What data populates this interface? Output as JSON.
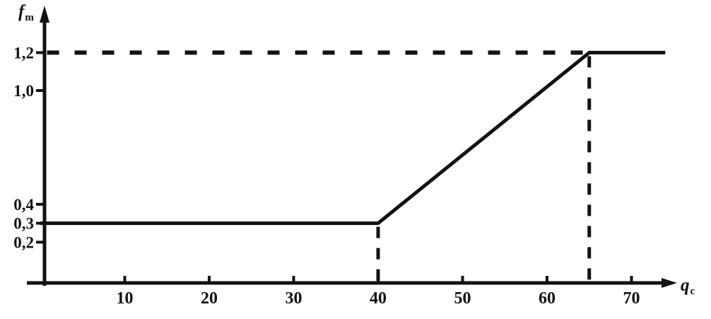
{
  "chart_data": {
    "type": "line",
    "title": "",
    "ylabel_main": "f",
    "ylabel_sub": "m",
    "xlabel_main": "q",
    "xlabel_sub": "c",
    "xlim": [
      0,
      77
    ],
    "ylim": [
      0,
      1.45
    ],
    "grid": false,
    "legend": false,
    "decimal_separator": ",",
    "x_ticks": [
      {
        "value": 10,
        "label": "10"
      },
      {
        "value": 20,
        "label": "20"
      },
      {
        "value": 30,
        "label": "30"
      },
      {
        "value": 40,
        "label": "40"
      },
      {
        "value": 50,
        "label": "50"
      },
      {
        "value": 60,
        "label": "60"
      },
      {
        "value": 70,
        "label": "70"
      }
    ],
    "y_ticks": [
      {
        "value": 0.2,
        "label": "0,2"
      },
      {
        "value": 0.3,
        "label": "0,3"
      },
      {
        "value": 0.4,
        "label": "0,4"
      },
      {
        "value": 1.0,
        "label": "1,0"
      },
      {
        "value": 1.2,
        "label": "1,2"
      }
    ],
    "series": [
      {
        "name": "fm-vs-qc-curve",
        "points": [
          [
            0,
            0.3
          ],
          [
            40,
            0.3
          ],
          [
            65,
            1.2
          ],
          [
            74,
            1.2
          ]
        ]
      }
    ],
    "reference_lines": {
      "horizontal_dashed": [
        {
          "y": 1.2,
          "x_from": 0.8,
          "x_to": 65
        }
      ],
      "vertical_dashed": [
        {
          "x": 40,
          "y_from": 0,
          "y_to": 0.3
        },
        {
          "x": 65,
          "y_from": 0,
          "y_to": 1.2
        }
      ]
    }
  }
}
